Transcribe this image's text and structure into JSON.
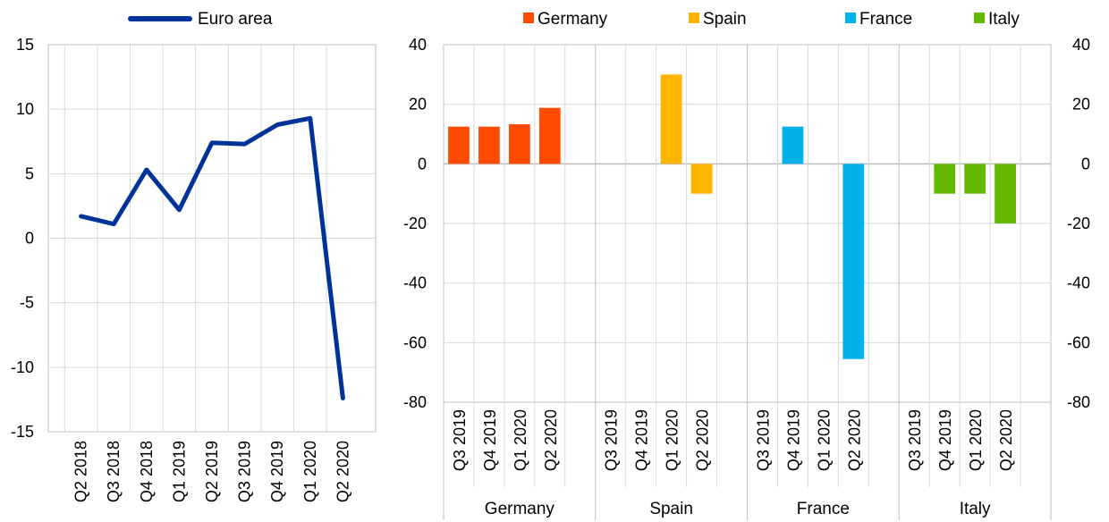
{
  "chart_data": [
    {
      "type": "line",
      "categories": [
        "Q2 2018",
        "Q3 2018",
        "Q4 2018",
        "Q1 2019",
        "Q2 2019",
        "Q3 2019",
        "Q4 2019",
        "Q1 2020",
        "Q2 2020"
      ],
      "series": [
        {
          "name": "Euro area",
          "values": [
            1.7,
            1.1,
            5.3,
            2.2,
            7.4,
            7.3,
            8.8,
            9.3,
            -12.4
          ],
          "color": "#003399"
        }
      ],
      "ylim": [
        -15,
        15
      ],
      "yticks": [
        15,
        10,
        5,
        0,
        -5,
        -10,
        -15
      ],
      "ytick_labels": [
        "15",
        "10",
        "5",
        "0",
        "-5",
        "-10",
        "-15"
      ],
      "grid": true
    },
    {
      "type": "bar",
      "groups": [
        {
          "name": "Germany",
          "color": "#FF4B00",
          "categories": [
            "Q3 2019",
            "Q4 2019",
            "Q1 2020",
            "Q2 2020"
          ],
          "values": [
            12.5,
            12.5,
            13.3,
            18.8
          ]
        },
        {
          "name": "Spain",
          "color": "#FFB400",
          "categories": [
            "Q3 2019",
            "Q4 2019",
            "Q1 2020",
            "Q2 2020"
          ],
          "values": [
            0,
            0,
            30,
            -10
          ]
        },
        {
          "name": "France",
          "color": "#00B1EA",
          "categories": [
            "Q3 2019",
            "Q4 2019",
            "Q1 2020",
            "Q2 2020"
          ],
          "values": [
            0,
            12.5,
            0,
            -65.5
          ]
        },
        {
          "name": "Italy",
          "color": "#65B800",
          "categories": [
            "Q3 2019",
            "Q4 2019",
            "Q1 2020",
            "Q2 2020"
          ],
          "values": [
            0,
            -10,
            -10,
            -20
          ]
        }
      ],
      "ylim": [
        -80,
        40
      ],
      "yticks": [
        40,
        20,
        0,
        -20,
        -40,
        -60,
        -80
      ],
      "ytick_labels": [
        "40",
        "20",
        "0",
        "-20",
        "-40",
        "-60",
        "-80"
      ],
      "grid": true
    }
  ]
}
